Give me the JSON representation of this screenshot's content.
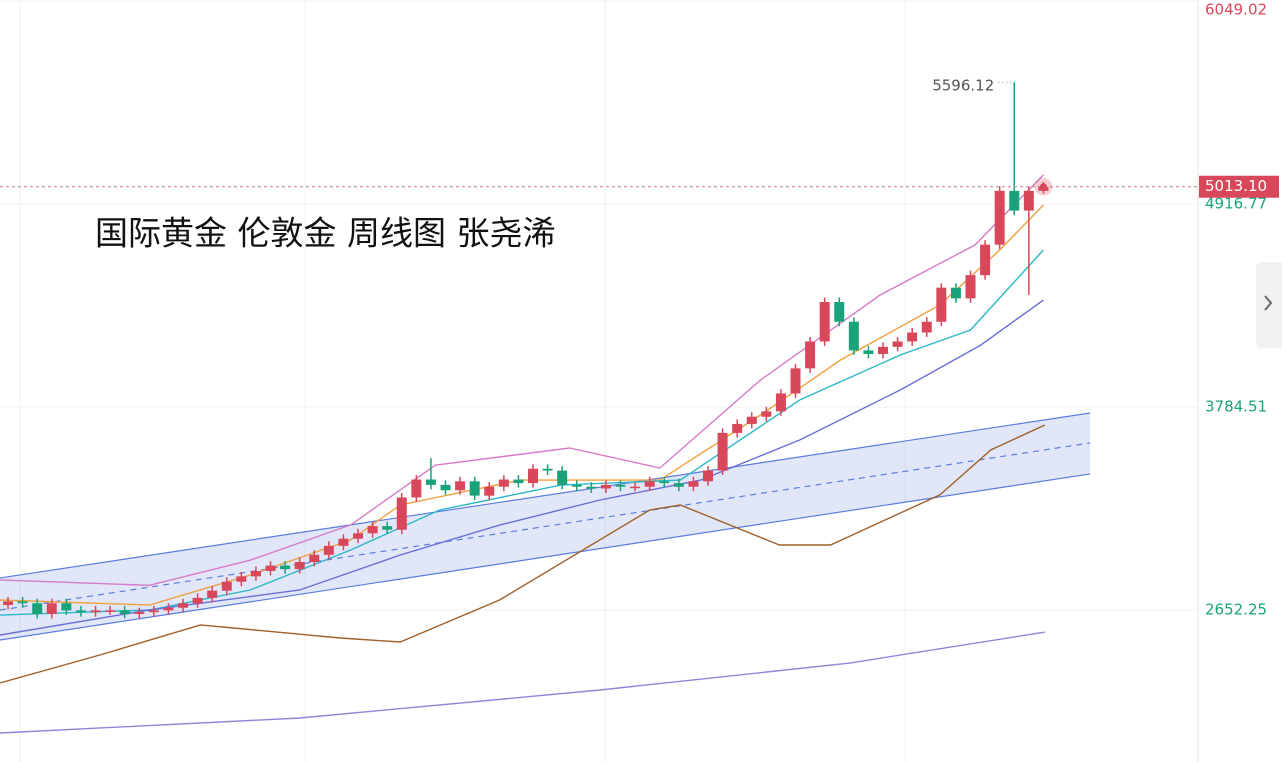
{
  "chart_data": {
    "type": "candlestick",
    "title": "国际黄金 伦敦金 周线图 张尧浠",
    "xlim": [
      -0.55,
      81.6
    ],
    "ylim": [
      1804.45,
      6054.55
    ],
    "yticks": [
      2652.25,
      3784.51,
      4916.77,
      6049.02
    ],
    "grid": true,
    "up_color": "#d9475a",
    "down_color": "#1aa37a",
    "last_price": {
      "value": 5013.1,
      "label": "5013.10"
    },
    "high_label": 5596.12,
    "open": [
      2680,
      2700,
      2690,
      2630,
      2690,
      2650,
      2640,
      2650,
      2650,
      2630,
      2640,
      2650,
      2665,
      2690,
      2720,
      2760,
      2810,
      2840,
      2870,
      2900,
      2880,
      2920,
      2960,
      3010,
      3050,
      3080,
      3120,
      3100,
      3280,
      3380,
      3350,
      3320,
      3370,
      3290,
      3340,
      3380,
      3360,
      3440,
      3430,
      3350,
      3340,
      3330,
      3350,
      3340,
      3340,
      3370,
      3360,
      3340,
      3370,
      3430,
      3640,
      3690,
      3730,
      3760,
      3860,
      4000,
      4150,
      4370,
      4260,
      4100,
      4080,
      4120,
      4150,
      4200,
      4260,
      4450,
      4390,
      4520,
      4690,
      4990,
      4880,
      4990
    ],
    "high": [
      2725,
      2725,
      2715,
      2715,
      2715,
      2675,
      2675,
      2675,
      2675,
      2665,
      2675,
      2690,
      2715,
      2745,
      2785,
      2835,
      2865,
      2895,
      2925,
      2925,
      2945,
      2985,
      3035,
      3075,
      3105,
      3145,
      3145,
      3305,
      3405,
      3500,
      3375,
      3395,
      3395,
      3365,
      3405,
      3405,
      3465,
      3465,
      3455,
      3375,
      3365,
      3375,
      3375,
      3365,
      3395,
      3395,
      3385,
      3395,
      3455,
      3665,
      3715,
      3755,
      3785,
      3885,
      4025,
      4175,
      4395,
      4395,
      4285,
      4125,
      4145,
      4175,
      4225,
      4285,
      4475,
      4475,
      4545,
      4715,
      5015,
      5596.12,
      5015,
      5040
    ],
    "low": [
      2655,
      2665,
      2605,
      2605,
      2625,
      2615,
      2615,
      2625,
      2605,
      2605,
      2615,
      2625,
      2640,
      2665,
      2695,
      2735,
      2785,
      2815,
      2845,
      2855,
      2855,
      2895,
      2935,
      2985,
      3025,
      3055,
      3075,
      3075,
      3255,
      3325,
      3295,
      3295,
      3265,
      3265,
      3315,
      3335,
      3335,
      3405,
      3325,
      3315,
      3305,
      3305,
      3315,
      3315,
      3315,
      3335,
      3315,
      3315,
      3345,
      3405,
      3615,
      3665,
      3705,
      3735,
      3835,
      3975,
      4125,
      4235,
      4075,
      4055,
      4055,
      4095,
      4125,
      4175,
      4235,
      4365,
      4365,
      4495,
      4665,
      4855,
      4410,
      4975
    ],
    "close": [
      2700,
      2690,
      2630,
      2690,
      2650,
      2640,
      2650,
      2650,
      2630,
      2640,
      2650,
      2665,
      2690,
      2720,
      2760,
      2810,
      2840,
      2870,
      2900,
      2880,
      2920,
      2960,
      3010,
      3050,
      3080,
      3120,
      3100,
      3280,
      3380,
      3350,
      3320,
      3370,
      3290,
      3340,
      3380,
      3360,
      3440,
      3430,
      3350,
      3340,
      3330,
      3350,
      3340,
      3340,
      3370,
      3360,
      3340,
      3370,
      3430,
      3640,
      3690,
      3730,
      3760,
      3860,
      4000,
      4150,
      4370,
      4260,
      4100,
      4080,
      4120,
      4150,
      4200,
      4260,
      4450,
      4390,
      4520,
      4690,
      4990,
      4880,
      4990,
      5013.1
    ],
    "channel": {
      "color": "#5b7be0",
      "x": [
        -0.55,
        74.2
      ],
      "upper": [
        2831,
        3751
      ],
      "mid": [
        2652,
        3584
      ],
      "lower": [
        2485,
        3411
      ]
    },
    "lines": [
      {
        "color": "#d77bc8",
        "x": [
          -0.55,
          9.7,
          16.6,
          23.5,
          29.3,
          38.5,
          44.7,
          51.6,
          59.8,
          66.3,
          71
        ],
        "values": [
          2820,
          2790,
          2930,
          3127,
          3460,
          3556,
          3444,
          3935,
          4409,
          4688,
          5079
        ]
      },
      {
        "color": "#f0a040",
        "x": [
          -0.55,
          9.7,
          16.6,
          23.5,
          26.9,
          35.1,
          44.7,
          51.6,
          57.1,
          63.9,
          68.0,
          71
        ],
        "values": [
          2708,
          2680,
          2847,
          3043,
          3238,
          3377,
          3377,
          3740,
          4047,
          4354,
          4660,
          4911
        ]
      },
      {
        "color": "#2ab7c8",
        "x": [
          -0.55,
          9.7,
          16.6,
          23.5,
          29.6,
          37.9,
          46.1,
          54.3,
          61.2,
          66.0,
          71
        ],
        "values": [
          2624,
          2652,
          2764,
          2987,
          3210,
          3349,
          3377,
          3824,
          4075,
          4214,
          4660
        ]
      },
      {
        "color": "#6a6fd6",
        "x": [
          -0.55,
          9.7,
          20.0,
          26.9,
          33.7,
          40.6,
          47.5,
          54.3,
          61.2,
          66.7,
          71
        ],
        "values": [
          2513,
          2652,
          2764,
          2959,
          3126,
          3266,
          3377,
          3601,
          3880,
          4130,
          4381
        ]
      },
      {
        "color": "#a0602a",
        "x": [
          -0.55,
          6.3,
          13.2,
          22.8,
          26.9,
          33.7,
          44.0,
          46.1,
          52.9,
          56.4,
          63.9,
          67.4,
          71.1
        ],
        "values": [
          2245,
          2401,
          2569,
          2496,
          2474,
          2708,
          3210,
          3238,
          3015,
          3015,
          3294,
          3545,
          3684
        ]
      },
      {
        "color": "#8f86d8",
        "x": [
          -0.55,
          20.0,
          40.6,
          57.8,
          71.1
        ],
        "values": [
          1966,
          2050,
          2206,
          2357,
          2529
        ]
      }
    ]
  }
}
